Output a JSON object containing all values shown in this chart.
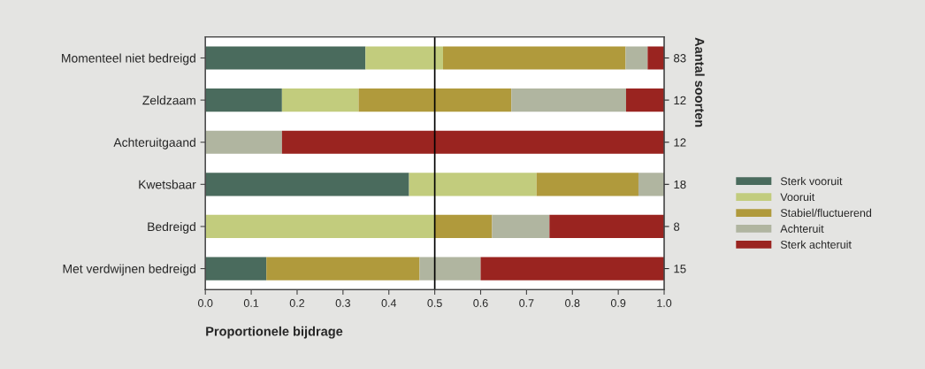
{
  "chart_data": {
    "type": "bar",
    "orientation": "horizontal",
    "stacked": true,
    "categories": [
      "Momenteel niet bedreigd",
      "Zeldzaam",
      "Achteruitgaand",
      "Kwetsbaar",
      "Bedreigd",
      "Met verdwijnen bedreigd"
    ],
    "series": [
      {
        "name": "Sterk vooruit",
        "color": "#4a6b5d",
        "values": [
          0.349,
          0.167,
          0,
          0.444,
          0,
          0.133
        ]
      },
      {
        "name": "Vooruit",
        "color": "#c2cc7d",
        "values": [
          0.169,
          0.167,
          0,
          0.278,
          0.5,
          0
        ]
      },
      {
        "name": "Stabiel/fluctuerend",
        "color": "#b09a3c",
        "values": [
          0.398,
          0.333,
          0,
          0.222,
          0.125,
          0.334
        ]
      },
      {
        "name": "Achteruit",
        "color": "#b0b5a0",
        "values": [
          0.048,
          0.25,
          0.167,
          0.056,
          0.125,
          0.133
        ]
      },
      {
        "name": "Sterk achteruit",
        "color": "#9a2420",
        "values": [
          0.036,
          0.083,
          0.833,
          0,
          0.25,
          0.4
        ]
      }
    ],
    "xlabel": "Proportionele bijdrage",
    "y2label": "Aantal soorten",
    "annotations": [
      "83",
      "12",
      "12",
      "18",
      "8",
      "15"
    ],
    "xlim": [
      0,
      1
    ],
    "xticks": [
      {
        "value": 0,
        "label": "0.0"
      },
      0.1,
      0.2,
      0.3,
      0.4,
      0.5,
      0.6,
      0.7,
      0.8,
      0.9,
      {
        "value": 1,
        "label": "1.0"
      }
    ],
    "ref_lines": [
      {
        "axis": "x",
        "value": 0.5,
        "color": "#000000"
      }
    ],
    "legend": "right",
    "grid": false
  }
}
